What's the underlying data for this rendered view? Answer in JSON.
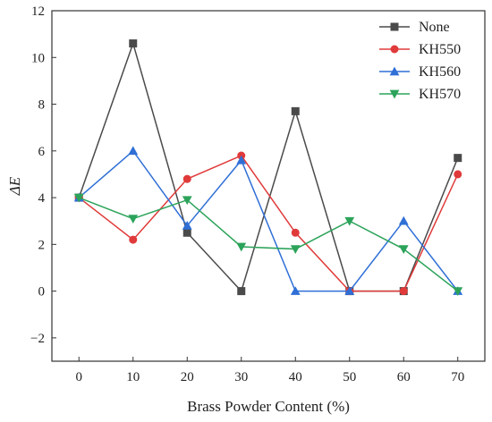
{
  "chart_data": {
    "type": "line",
    "x": [
      0,
      10,
      20,
      30,
      40,
      50,
      60,
      70
    ],
    "series": [
      {
        "name": "None",
        "color": "#4a4a4a",
        "marker": "square",
        "values": [
          4.0,
          10.6,
          2.5,
          0.0,
          7.7,
          0.0,
          0.0,
          5.7
        ]
      },
      {
        "name": "KH550",
        "color": "#e03a3a",
        "marker": "circle",
        "values": [
          4.0,
          2.2,
          4.8,
          5.8,
          2.5,
          0.0,
          0.0,
          5.0
        ]
      },
      {
        "name": "KH560",
        "color": "#2f6fd6",
        "marker": "triangle-up",
        "values": [
          4.0,
          6.0,
          2.8,
          5.6,
          0.0,
          0.0,
          3.0,
          0.0
        ]
      },
      {
        "name": "KH570",
        "color": "#2ca35a",
        "marker": "triangle-down",
        "values": [
          4.0,
          3.1,
          3.9,
          1.9,
          1.8,
          3.0,
          1.8,
          0.0
        ]
      }
    ],
    "xlabel": "Brass Powder Content (%)",
    "ylabel": "ΔE",
    "xlim": [
      -5,
      75
    ],
    "ylim": [
      -3,
      12
    ],
    "x_ticks": [
      0,
      10,
      20,
      30,
      40,
      50,
      60,
      70
    ],
    "y_ticks": [
      -2,
      0,
      2,
      4,
      6,
      8,
      10,
      12
    ],
    "grid": false,
    "legend_position": "top-right"
  }
}
